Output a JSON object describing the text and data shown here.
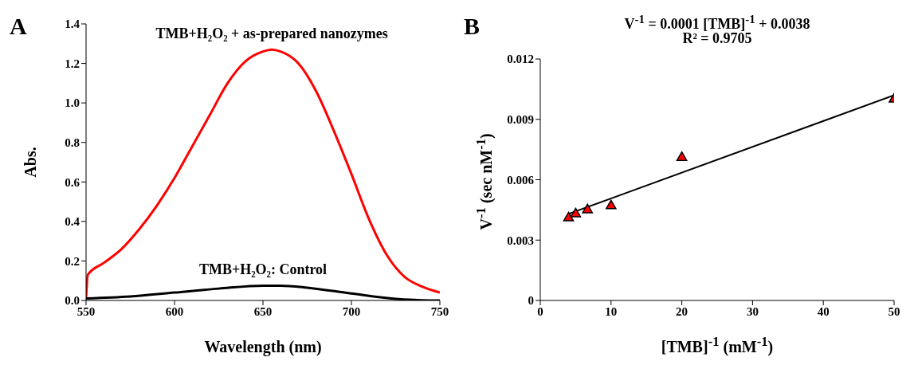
{
  "chart_data": [
    {
      "type": "line",
      "xlabel": "Wavelength (nm)",
      "ylabel": "Abs.",
      "annotations": [
        "A"
      ],
      "line_style": "solid",
      "marker": "none",
      "grid": false,
      "xlim": [
        550,
        750
      ],
      "xticks": [
        550,
        600,
        650,
        700,
        750
      ],
      "ylim": [
        0,
        1.4
      ],
      "yticks": [
        {
          "value": 0,
          "label": "0.0"
        },
        {
          "value": 0.2,
          "label": "0.2"
        },
        {
          "value": 0.4,
          "label": "0.4"
        },
        {
          "value": 0.6,
          "label": "0.6"
        },
        {
          "value": 0.8,
          "label": "0.8"
        },
        {
          "value": 1,
          "label": "1.0"
        },
        {
          "value": 1.2,
          "label": "1.2"
        },
        {
          "value": 1.4,
          "label": "1.4"
        }
      ],
      "series": [
        {
          "name": "TMB+H₂O₂ + as-prepared nanozymes",
          "color": "#ff0000",
          "x": [
            550,
            551,
            560,
            570,
            580,
            590,
            600,
            610,
            620,
            630,
            640,
            650,
            655,
            660,
            670,
            680,
            690,
            700,
            710,
            720,
            730,
            740,
            750
          ],
          "values": [
            0.01,
            0.13,
            0.19,
            0.26,
            0.36,
            0.48,
            0.62,
            0.78,
            0.94,
            1.1,
            1.21,
            1.26,
            1.27,
            1.26,
            1.2,
            1.06,
            0.86,
            0.64,
            0.41,
            0.23,
            0.12,
            0.07,
            0.04
          ]
        },
        {
          "name": "TMB+H₂O₂: Control",
          "color": "#000000",
          "x": [
            550,
            575,
            600,
            625,
            650,
            660,
            675,
            700,
            725,
            740,
            750
          ],
          "values": [
            0.01,
            0.02,
            0.04,
            0.06,
            0.075,
            0.075,
            0.065,
            0.035,
            0.008,
            0.001,
            0
          ]
        }
      ]
    },
    {
      "type": "scatter",
      "xlabel": "[TMB]$^{-1}$ (mM$^{-1}$)",
      "ylabel": "V$^{-1}$ (sec nM$^{-1}$)",
      "annotations": [
        "B",
        "V$^{-1}$ = 0.0001 [TMB]$^{-1}$ + 0.0038",
        "R² = 0.9705"
      ],
      "marker": "triangle",
      "grid": false,
      "xlim": [
        0,
        50
      ],
      "xticks": [
        0,
        10,
        20,
        30,
        40,
        50
      ],
      "ylim": [
        0,
        0.012
      ],
      "yticks": [
        0,
        0.003,
        0.006,
        0.009,
        0.012
      ],
      "series": [
        {
          "type": "line",
          "marker": "none",
          "color": "#000000",
          "x": [
            4,
            50
          ],
          "values": [
            0.0043,
            0.0102
          ]
        },
        {
          "color": "#ff0000",
          "x": [
            4,
            5,
            6.67,
            10,
            20,
            50
          ],
          "values": [
            0.0041,
            0.0043,
            0.0045,
            0.0047,
            0.0071,
            0.01
          ]
        }
      ]
    }
  ]
}
